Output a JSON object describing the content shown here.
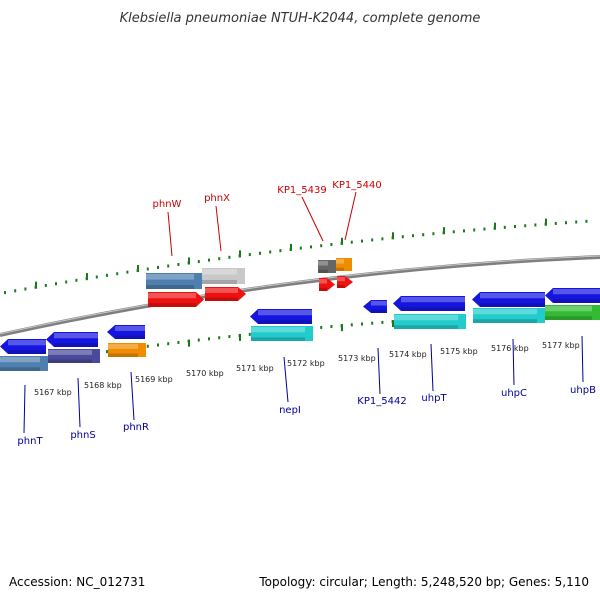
{
  "title": "Klebsiella pneumoniae NTUH-K2044, complete genome",
  "footer": {
    "accession": "Accession: NC_012731",
    "topology": "Topology: circular; Length: 5,248,520 bp; Genes: 5,110"
  },
  "colors": {
    "backbone": "#8c8c8c",
    "ticks": "#1a7a1a",
    "plus_label": "#cc0000",
    "minus_label": "#000099"
  },
  "scale": {
    "unit": "kbp",
    "labels": [
      "5167 kbp",
      "5168 kbp",
      "5169 kbp",
      "5170 kbp",
      "5171 kbp",
      "5172 kbp",
      "5173 kbp",
      "5174 kbp",
      "5175 kbp",
      "5176 kbp",
      "5177 kbp"
    ]
  },
  "genes": {
    "plus_strand": [
      "phnW",
      "phnX",
      "KP1_5439",
      "KP1_5440"
    ],
    "minus_strand": [
      "phnT",
      "phnS",
      "phnR",
      "nepI",
      "KP1_5442",
      "uhpT",
      "uhpC",
      "uhpB"
    ]
  }
}
